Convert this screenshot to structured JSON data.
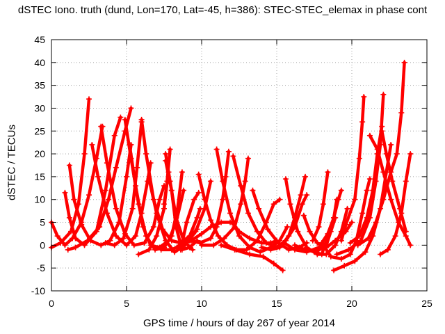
{
  "chart_data": {
    "type": "scatter",
    "title": "dSTEC Iono. truth (dund, Lon=170, Lat=-45, h=386): STEC-STEC_elemax in phase cont",
    "xlabel": "GPS time / hours of day 267 of year 2014",
    "ylabel": "dSTEC  / TECUs",
    "xlim": [
      0,
      25
    ],
    "ylim": [
      -10,
      45
    ],
    "xticks": [
      "0",
      "5",
      "10",
      "15",
      "20",
      "25"
    ],
    "yticks": [
      "-10",
      "-5",
      "0",
      "5",
      "10",
      "15",
      "20",
      "25",
      "30",
      "35",
      "40",
      "45"
    ],
    "grid": true,
    "marker": "plus",
    "color": "#ff0000",
    "arcs": [
      [
        [
          0.0,
          5.0
        ],
        [
          0.4,
          2.0
        ],
        [
          0.9,
          0.0
        ],
        [
          1.4,
          1.5
        ],
        [
          2.0,
          5.0
        ],
        [
          2.5,
          11.0
        ],
        [
          3.0,
          19.0
        ],
        [
          3.4,
          26.0
        ]
      ],
      [
        [
          0.0,
          -0.5
        ],
        [
          0.6,
          0.5
        ],
        [
          1.3,
          3.0
        ],
        [
          1.8,
          9.0
        ],
        [
          2.2,
          20.0
        ],
        [
          2.5,
          32.0
        ]
      ],
      [
        [
          0.9,
          11.5
        ],
        [
          1.2,
          6.0
        ],
        [
          1.6,
          1.5
        ],
        [
          2.2,
          0.0
        ],
        [
          3.0,
          3.0
        ],
        [
          3.6,
          12.0
        ],
        [
          4.2,
          24.0
        ],
        [
          4.6,
          28.0
        ]
      ],
      [
        [
          1.2,
          17.5
        ],
        [
          1.5,
          10.0
        ],
        [
          2.0,
          4.5
        ],
        [
          2.6,
          1.0
        ],
        [
          3.3,
          0.0
        ],
        [
          3.9,
          1.0
        ],
        [
          4.5,
          5.0
        ],
        [
          5.0,
          15.0
        ],
        [
          5.3,
          22.0
        ]
      ],
      [
        [
          1.1,
          -1.0
        ],
        [
          1.6,
          -0.5
        ],
        [
          2.4,
          1.0
        ],
        [
          3.2,
          4.0
        ],
        [
          3.8,
          10.0
        ],
        [
          4.3,
          17.0
        ],
        [
          4.9,
          25.0
        ],
        [
          5.3,
          30.0
        ]
      ],
      [
        [
          2.7,
          22.0
        ],
        [
          3.1,
          15.0
        ],
        [
          3.7,
          7.0
        ],
        [
          4.3,
          2.0
        ],
        [
          5.0,
          0.0
        ],
        [
          5.6,
          2.0
        ],
        [
          6.0,
          7.0
        ],
        [
          6.4,
          14.0
        ],
        [
          6.6,
          18.0
        ]
      ],
      [
        [
          3.3,
          26.0
        ],
        [
          3.7,
          18.0
        ],
        [
          4.3,
          8.0
        ],
        [
          4.9,
          2.5
        ],
        [
          5.5,
          0.0
        ],
        [
          6.2,
          0.5
        ],
        [
          6.8,
          4.0
        ],
        [
          7.2,
          10.0
        ],
        [
          7.5,
          13.0
        ]
      ],
      [
        [
          3.6,
          0.5
        ],
        [
          4.2,
          0.0
        ],
        [
          4.8,
          1.5
        ],
        [
          5.4,
          8.0
        ],
        [
          5.7,
          17.0
        ],
        [
          6.0,
          27.0
        ]
      ],
      [
        [
          4.9,
          27.5
        ],
        [
          5.3,
          19.0
        ],
        [
          5.8,
          9.0
        ],
        [
          6.3,
          2.0
        ],
        [
          6.9,
          -1.0
        ],
        [
          7.5,
          -0.5
        ],
        [
          8.0,
          2.0
        ],
        [
          8.4,
          8.0
        ],
        [
          8.7,
          16.0
        ]
      ],
      [
        [
          5.2,
          22.0
        ],
        [
          5.6,
          13.0
        ],
        [
          6.1,
          4.0
        ],
        [
          6.6,
          0.0
        ],
        [
          7.2,
          -0.5
        ],
        [
          7.8,
          1.0
        ],
        [
          8.3,
          5.0
        ],
        [
          8.8,
          12.0
        ]
      ],
      [
        [
          5.8,
          -2.0
        ],
        [
          6.5,
          -1.0
        ],
        [
          7.0,
          2.0
        ],
        [
          7.5,
          8.0
        ],
        [
          7.7,
          14.0
        ],
        [
          7.9,
          21.0
        ]
      ],
      [
        [
          6.0,
          27.5
        ],
        [
          6.3,
          20.0
        ],
        [
          6.8,
          10.0
        ],
        [
          7.4,
          3.5
        ],
        [
          8.0,
          1.0
        ],
        [
          8.6,
          0.5
        ],
        [
          9.2,
          2.0
        ],
        [
          9.7,
          6.0
        ],
        [
          9.9,
          8.0
        ]
      ],
      [
        [
          6.5,
          14.5
        ],
        [
          7.0,
          7.0
        ],
        [
          7.6,
          1.0
        ],
        [
          8.2,
          -1.5
        ],
        [
          8.9,
          0.0
        ],
        [
          9.6,
          3.0
        ],
        [
          10.2,
          8.0
        ],
        [
          10.6,
          14.0
        ]
      ],
      [
        [
          7.3,
          -1.0
        ],
        [
          8.0,
          -1.0
        ],
        [
          8.6,
          0.0
        ],
        [
          9.0,
          1.0
        ],
        [
          9.4,
          2.5
        ],
        [
          9.7,
          3.5
        ]
      ],
      [
        [
          7.5,
          9.0
        ],
        [
          7.8,
          16.0
        ],
        [
          7.6,
          18.5
        ],
        [
          8.0,
          12.0
        ],
        [
          8.3,
          4.0
        ],
        [
          8.7,
          -1.0
        ],
        [
          9.2,
          -0.5
        ],
        [
          9.7,
          1.0
        ]
      ],
      [
        [
          7.6,
          20.0
        ],
        [
          7.9,
          14.0
        ],
        [
          8.3,
          6.0
        ],
        [
          8.8,
          1.0
        ],
        [
          9.4,
          -1.0
        ]
      ],
      [
        [
          8.5,
          0.0
        ],
        [
          9.3,
          1.0
        ],
        [
          10.0,
          2.5
        ],
        [
          10.6,
          4.0
        ],
        [
          11.3,
          5.0
        ],
        [
          11.9,
          5.0
        ]
      ],
      [
        [
          8.6,
          -1.0
        ],
        [
          9.0,
          5.0
        ],
        [
          9.5,
          10.0
        ],
        [
          9.8,
          11.5
        ]
      ],
      [
        [
          9.2,
          1.0
        ],
        [
          9.9,
          0.5
        ],
        [
          10.6,
          1.5
        ],
        [
          11.0,
          4.0
        ],
        [
          11.4,
          10.0
        ],
        [
          11.6,
          15.0
        ],
        [
          11.8,
          20.5
        ]
      ],
      [
        [
          9.8,
          15.5
        ],
        [
          10.2,
          10.0
        ],
        [
          10.6,
          5.5
        ],
        [
          11.1,
          2.0
        ],
        [
          11.7,
          0.0
        ],
        [
          12.3,
          -1.0
        ],
        [
          13.0,
          -1.0
        ],
        [
          13.7,
          1.0
        ],
        [
          14.3,
          5.0
        ],
        [
          14.8,
          9.0
        ],
        [
          15.2,
          10.0
        ]
      ],
      [
        [
          10.0,
          0.0
        ],
        [
          10.8,
          0.0
        ],
        [
          11.5,
          1.5
        ],
        [
          12.2,
          4.0
        ],
        [
          12.6,
          9.0
        ],
        [
          12.9,
          14.0
        ],
        [
          13.1,
          19.0
        ]
      ],
      [
        [
          11.0,
          21.0
        ],
        [
          11.4,
          14.0
        ],
        [
          11.9,
          7.0
        ],
        [
          12.5,
          2.0
        ],
        [
          13.2,
          -0.5
        ],
        [
          13.9,
          -1.5
        ],
        [
          14.6,
          -0.5
        ],
        [
          15.2,
          1.0
        ],
        [
          15.7,
          4.0
        ]
      ],
      [
        [
          11.3,
          0.0
        ],
        [
          12.2,
          -1.0
        ],
        [
          13.2,
          -2.0
        ],
        [
          14.1,
          -2.5
        ],
        [
          14.8,
          -4.0
        ],
        [
          15.4,
          -5.5
        ]
      ],
      [
        [
          12.0,
          5.0
        ],
        [
          12.5,
          3.0
        ],
        [
          13.2,
          1.5
        ],
        [
          14.0,
          0.5
        ],
        [
          14.6,
          0.5
        ],
        [
          15.0,
          1.0
        ]
      ],
      [
        [
          12.1,
          19.5
        ],
        [
          12.6,
          13.0
        ],
        [
          13.1,
          7.0
        ],
        [
          13.7,
          3.0
        ],
        [
          14.3,
          0.5
        ],
        [
          15.0,
          -0.5
        ],
        [
          15.6,
          1.0
        ],
        [
          16.2,
          4.0
        ],
        [
          16.7,
          9.0
        ],
        [
          17.0,
          11.0
        ]
      ],
      [
        [
          13.4,
          12.0
        ],
        [
          13.8,
          8.0
        ],
        [
          14.4,
          3.5
        ],
        [
          15.1,
          0.5
        ],
        [
          15.8,
          -1.0
        ],
        [
          16.5,
          -0.5
        ],
        [
          17.0,
          0.5
        ]
      ],
      [
        [
          14.0,
          -0.5
        ],
        [
          14.6,
          -1.0
        ],
        [
          15.2,
          -0.5
        ],
        [
          15.8,
          2.0
        ],
        [
          16.2,
          6.0
        ],
        [
          16.6,
          11.0
        ],
        [
          16.9,
          15.0
        ]
      ],
      [
        [
          15.6,
          14.5
        ],
        [
          15.9,
          9.0
        ],
        [
          16.4,
          3.0
        ],
        [
          17.0,
          -0.5
        ],
        [
          17.7,
          -2.0
        ],
        [
          18.3,
          -2.0
        ],
        [
          18.9,
          0.0
        ],
        [
          19.3,
          3.0
        ],
        [
          19.7,
          8.0
        ]
      ],
      [
        [
          15.5,
          0.5
        ],
        [
          16.2,
          -1.0
        ],
        [
          17.0,
          -1.5
        ],
        [
          17.8,
          -0.5
        ],
        [
          18.4,
          2.5
        ],
        [
          18.8,
          6.0
        ],
        [
          19.0,
          10.0
        ]
      ],
      [
        [
          16.2,
          0.0
        ],
        [
          16.9,
          -1.0
        ],
        [
          17.6,
          -1.5
        ],
        [
          18.3,
          0.0
        ],
        [
          18.6,
          3.0
        ],
        [
          18.9,
          6.0
        ]
      ],
      [
        [
          16.8,
          6.5
        ],
        [
          17.2,
          3.0
        ],
        [
          17.7,
          0.5
        ],
        [
          18.3,
          -0.5
        ],
        [
          18.9,
          1.0
        ],
        [
          19.6,
          3.0
        ],
        [
          20.0,
          5.0
        ]
      ],
      [
        [
          17.5,
          -1.5
        ],
        [
          18.0,
          -2.0
        ],
        [
          18.3,
          1.0
        ],
        [
          18.8,
          6.0
        ],
        [
          19.1,
          10.0
        ],
        [
          19.3,
          12.0
        ]
      ],
      [
        [
          17.4,
          1.0
        ],
        [
          17.8,
          4.0
        ],
        [
          18.1,
          9.0
        ],
        [
          18.4,
          16.0
        ]
      ],
      [
        [
          18.0,
          0.5
        ],
        [
          18.6,
          -2.5
        ],
        [
          19.3,
          -3.0
        ],
        [
          19.9,
          -2.0
        ],
        [
          20.3,
          1.0
        ],
        [
          20.7,
          7.0
        ],
        [
          21.0,
          12.0
        ],
        [
          21.2,
          14.5
        ]
      ],
      [
        [
          18.8,
          -5.5
        ],
        [
          19.5,
          -4.5
        ],
        [
          20.2,
          -3.5
        ],
        [
          20.9,
          -1.5
        ],
        [
          21.4,
          2.0
        ],
        [
          21.9,
          8.0
        ],
        [
          22.3,
          16.0
        ],
        [
          22.6,
          22.0
        ]
      ],
      [
        [
          19.3,
          1.0
        ],
        [
          19.6,
          4.5
        ],
        [
          20.2,
          10.0
        ],
        [
          20.5,
          19.0
        ],
        [
          20.7,
          27.0
        ],
        [
          20.8,
          32.5
        ]
      ],
      [
        [
          19.0,
          -2.0
        ],
        [
          19.8,
          -1.0
        ],
        [
          20.6,
          1.0
        ],
        [
          21.2,
          6.0
        ],
        [
          21.6,
          14.0
        ],
        [
          21.9,
          22.0
        ],
        [
          22.1,
          33.0
        ]
      ],
      [
        [
          19.9,
          0.5
        ],
        [
          20.5,
          2.0
        ],
        [
          21.0,
          6.0
        ],
        [
          21.4,
          12.0
        ],
        [
          21.7,
          20.0
        ],
        [
          22.0,
          26.0
        ]
      ],
      [
        [
          20.4,
          0.0
        ],
        [
          21.1,
          1.5
        ],
        [
          21.6,
          5.0
        ],
        [
          22.1,
          10.0
        ],
        [
          22.6,
          16.0
        ],
        [
          23.0,
          20.0
        ],
        [
          23.3,
          29.0
        ],
        [
          23.5,
          40.0
        ]
      ],
      [
        [
          21.2,
          24.0
        ],
        [
          21.7,
          21.0
        ],
        [
          22.1,
          16.0
        ],
        [
          22.6,
          10.0
        ],
        [
          23.1,
          5.0
        ],
        [
          23.6,
          2.0
        ],
        [
          23.9,
          0.0
        ]
      ],
      [
        [
          21.9,
          -2.0
        ],
        [
          22.4,
          -1.0
        ],
        [
          22.9,
          2.0
        ],
        [
          23.3,
          7.0
        ],
        [
          23.6,
          14.0
        ],
        [
          23.9,
          20.0
        ]
      ],
      [
        [
          22.0,
          25.0
        ],
        [
          22.3,
          20.0
        ],
        [
          22.7,
          14.0
        ],
        [
          23.2,
          8.0
        ],
        [
          23.6,
          3.0
        ]
      ]
    ]
  }
}
